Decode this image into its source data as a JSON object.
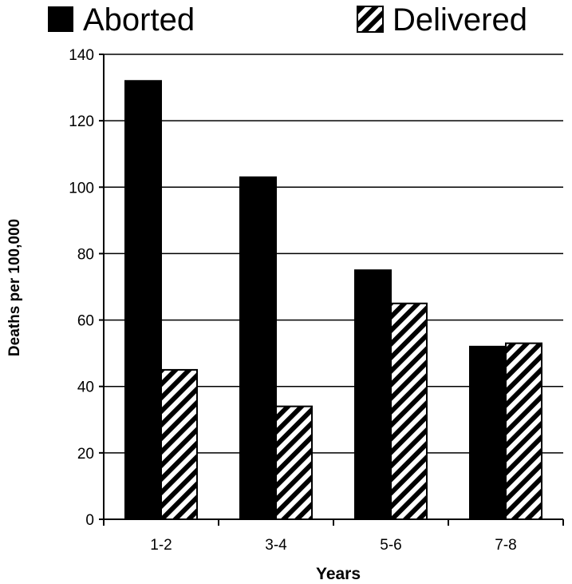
{
  "chart_data": {
    "type": "bar",
    "categories": [
      "1-2",
      "3-4",
      "5-6",
      "7-8"
    ],
    "series": [
      {
        "name": "Aborted",
        "values": [
          132,
          103,
          75,
          52
        ],
        "fill": "solid",
        "color": "#000000"
      },
      {
        "name": "Delivered",
        "values": [
          45,
          34,
          65,
          53
        ],
        "fill": "diagonal-hatch",
        "color": "#000000"
      }
    ],
    "xlabel": "Years",
    "ylabel": "Deaths per 100,000",
    "ylim": [
      0,
      140
    ],
    "yticks": [
      0,
      20,
      40,
      60,
      80,
      100,
      120,
      140
    ],
    "grid": true,
    "legend_position": "top"
  }
}
